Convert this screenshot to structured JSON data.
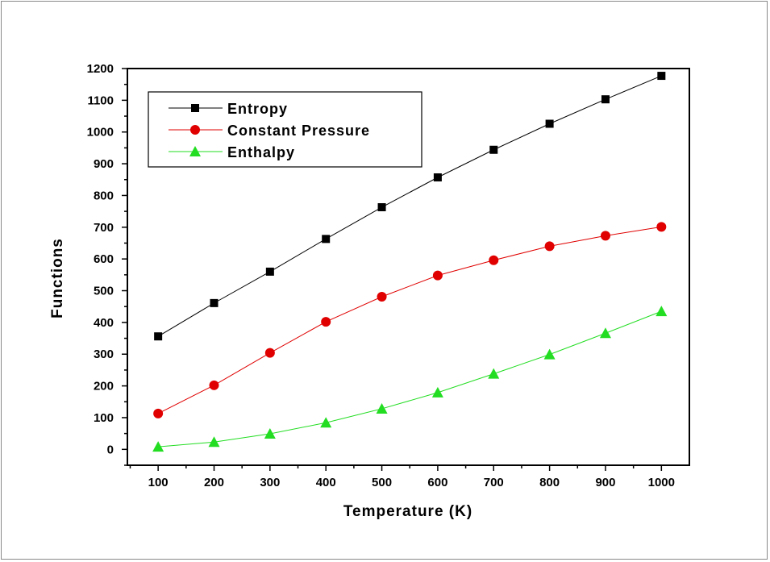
{
  "chart_data": {
    "type": "line",
    "title": "",
    "xlabel": "Temperature (K)",
    "ylabel": "Functions",
    "x": [
      100,
      200,
      300,
      400,
      500,
      600,
      700,
      800,
      900,
      1000
    ],
    "xlim": [
      45,
      1050
    ],
    "ylim": [
      -50,
      1200
    ],
    "xticks": [
      100,
      200,
      300,
      400,
      500,
      600,
      700,
      800,
      900,
      1000
    ],
    "yticks": [
      0,
      100,
      200,
      300,
      400,
      500,
      600,
      700,
      800,
      900,
      1000,
      1100,
      1200
    ],
    "grid": false,
    "legend_position": "top-left",
    "series": [
      {
        "name": "Entropy",
        "marker": "square",
        "color": "#000000",
        "values": [
          356,
          461,
          560,
          663,
          763,
          857,
          944,
          1026,
          1103,
          1177
        ]
      },
      {
        "name": "Constant Pressure",
        "marker": "circle",
        "color": "#e00000",
        "values": [
          113,
          202,
          304,
          402,
          481,
          548,
          596,
          640,
          673,
          701
        ]
      },
      {
        "name": "Enthalpy",
        "marker": "triangle",
        "color": "#22dd22",
        "values": [
          8,
          23,
          49,
          84,
          128,
          179,
          238,
          299,
          366,
          435
        ]
      }
    ]
  }
}
